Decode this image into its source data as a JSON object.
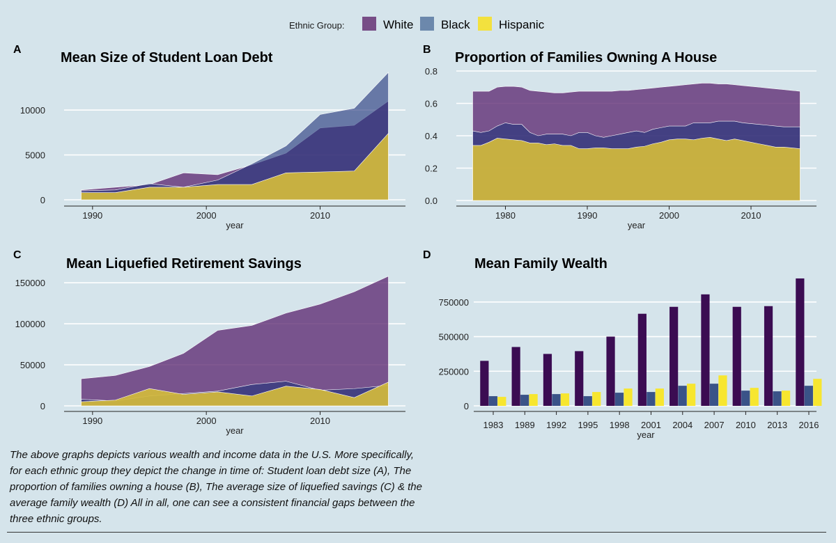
{
  "legend": {
    "title": "Ethnic Group:",
    "items": [
      {
        "label": "White",
        "color": "#774d86"
      },
      {
        "label": "Black",
        "color": "#6c88ac"
      },
      {
        "label": "Hispanic",
        "color": "#f3e13e"
      }
    ]
  },
  "caption": "The above graphs depicts various wealth and income data in the U.S. More specifically, for each ethnic group they depict the change in time of: Student loan debt size (A), The proportion of families owning a house (B), The average size of liquefied savings (C) & the average family wealth (D) All in all, one can see a consistent financial gaps between the three ethnic groups.",
  "chart_data": [
    {
      "panel": "A",
      "type": "area",
      "title": "Mean Size of Student Loan Debt",
      "xlabel": "year",
      "ylabel": "",
      "xlim": [
        1987.5,
        2017.5
      ],
      "ylim": [
        0,
        14500
      ],
      "xticks": [
        1990,
        2000,
        2010
      ],
      "yticks": [
        0,
        5000,
        10000
      ],
      "grid": "horizontal",
      "overlap": "overlapping, semi-transparent",
      "x": [
        1989,
        1992,
        1995,
        1998,
        2001,
        2004,
        2007,
        2010,
        2013,
        2016
      ],
      "series": [
        {
          "name": "White",
          "values": [
            1100,
            1400,
            1700,
            3000,
            2800,
            3900,
            5200,
            8000,
            8300,
            11000
          ]
        },
        {
          "name": "Black",
          "values": [
            1000,
            1100,
            1800,
            1400,
            2200,
            4000,
            6000,
            9500,
            10200,
            14200
          ]
        },
        {
          "name": "Hispanic",
          "values": [
            800,
            800,
            1400,
            1400,
            1700,
            1700,
            3000,
            3100,
            3200,
            7400
          ]
        }
      ]
    },
    {
      "panel": "B",
      "type": "area",
      "title": "Proportion of Families Owning A House",
      "xlabel": "year",
      "ylabel": "",
      "xlim": [
        1974,
        2018
      ],
      "ylim": [
        0,
        0.8
      ],
      "xticks": [
        1980,
        1990,
        2000,
        2010
      ],
      "yticks": [
        0.0,
        0.2,
        0.4,
        0.6,
        0.8
      ],
      "grid": "horizontal",
      "overlap": "overlapping, semi-transparent",
      "x": [
        1976,
        1977,
        1978,
        1979,
        1980,
        1981,
        1982,
        1983,
        1984,
        1985,
        1986,
        1987,
        1988,
        1989,
        1990,
        1991,
        1992,
        1993,
        1994,
        1995,
        1996,
        1997,
        1998,
        1999,
        2000,
        2001,
        2002,
        2003,
        2004,
        2005,
        2006,
        2007,
        2008,
        2009,
        2010,
        2011,
        2012,
        2013,
        2014,
        2015,
        2016
      ],
      "series": [
        {
          "name": "White",
          "values": [
            0.675,
            0.675,
            0.675,
            0.7,
            0.705,
            0.705,
            0.7,
            0.68,
            0.675,
            0.67,
            0.665,
            0.665,
            0.67,
            0.675,
            0.675,
            0.675,
            0.675,
            0.675,
            0.68,
            0.68,
            0.685,
            0.69,
            0.695,
            0.7,
            0.705,
            0.71,
            0.715,
            0.72,
            0.725,
            0.725,
            0.72,
            0.72,
            0.715,
            0.71,
            0.705,
            0.7,
            0.695,
            0.69,
            0.685,
            0.68,
            0.675
          ]
        },
        {
          "name": "Black",
          "values": [
            0.43,
            0.42,
            0.43,
            0.46,
            0.48,
            0.47,
            0.47,
            0.42,
            0.4,
            0.41,
            0.41,
            0.41,
            0.4,
            0.42,
            0.42,
            0.4,
            0.39,
            0.4,
            0.41,
            0.42,
            0.43,
            0.42,
            0.44,
            0.45,
            0.46,
            0.46,
            0.46,
            0.48,
            0.48,
            0.48,
            0.49,
            0.49,
            0.49,
            0.48,
            0.475,
            0.47,
            0.465,
            0.46,
            0.455,
            0.455,
            0.455
          ]
        },
        {
          "name": "Hispanic",
          "values": [
            0.34,
            0.34,
            0.36,
            0.385,
            0.38,
            0.375,
            0.37,
            0.355,
            0.355,
            0.345,
            0.35,
            0.34,
            0.34,
            0.32,
            0.32,
            0.325,
            0.325,
            0.32,
            0.32,
            0.32,
            0.33,
            0.335,
            0.35,
            0.36,
            0.375,
            0.38,
            0.38,
            0.375,
            0.385,
            0.39,
            0.38,
            0.37,
            0.38,
            0.37,
            0.36,
            0.35,
            0.34,
            0.33,
            0.33,
            0.325,
            0.32
          ]
        }
      ]
    },
    {
      "panel": "C",
      "type": "area",
      "title": "Mean Liquefied Retirement Savings",
      "xlabel": "year",
      "ylabel": "",
      "xlim": [
        1987.5,
        2017.5
      ],
      "ylim": [
        0,
        162000
      ],
      "xticks": [
        1990,
        2000,
        2010
      ],
      "yticks": [
        0,
        50000,
        100000,
        150000
      ],
      "grid": "horizontal",
      "overlap": "overlapping, semi-transparent",
      "x": [
        1989,
        1992,
        1995,
        1998,
        2001,
        2004,
        2007,
        2010,
        2013,
        2016
      ],
      "series": [
        {
          "name": "White",
          "values": [
            33000,
            37000,
            48000,
            64000,
            92000,
            98000,
            113000,
            124000,
            139000,
            158000
          ]
        },
        {
          "name": "Black",
          "values": [
            8000,
            6000,
            12000,
            15000,
            18000,
            26000,
            30000,
            19000,
            21000,
            25000
          ]
        },
        {
          "name": "Hispanic",
          "values": [
            5000,
            7000,
            21000,
            14000,
            17000,
            12000,
            24000,
            20000,
            10000,
            29000
          ]
        }
      ]
    },
    {
      "panel": "D",
      "type": "bar",
      "title": "Mean Family Wealth",
      "xlabel": "year",
      "ylabel": "",
      "ylim": [
        0,
        960000
      ],
      "yticks": [
        0,
        250000,
        500000,
        750000
      ],
      "grid": "horizontal",
      "categories": [
        "1983",
        "1989",
        "1992",
        "1995",
        "1998",
        "2001",
        "2004",
        "2007",
        "2010",
        "2013",
        "2016"
      ],
      "series": [
        {
          "name": "White",
          "values": [
            325000,
            425000,
            375000,
            395000,
            500000,
            665000,
            715000,
            805000,
            715000,
            720000,
            920000
          ]
        },
        {
          "name": "Black",
          "values": [
            70000,
            80000,
            85000,
            70000,
            95000,
            100000,
            145000,
            160000,
            110000,
            105000,
            145000
          ]
        },
        {
          "name": "Hispanic",
          "values": [
            65000,
            85000,
            90000,
            100000,
            125000,
            125000,
            160000,
            220000,
            130000,
            110000,
            195000
          ]
        }
      ]
    }
  ]
}
